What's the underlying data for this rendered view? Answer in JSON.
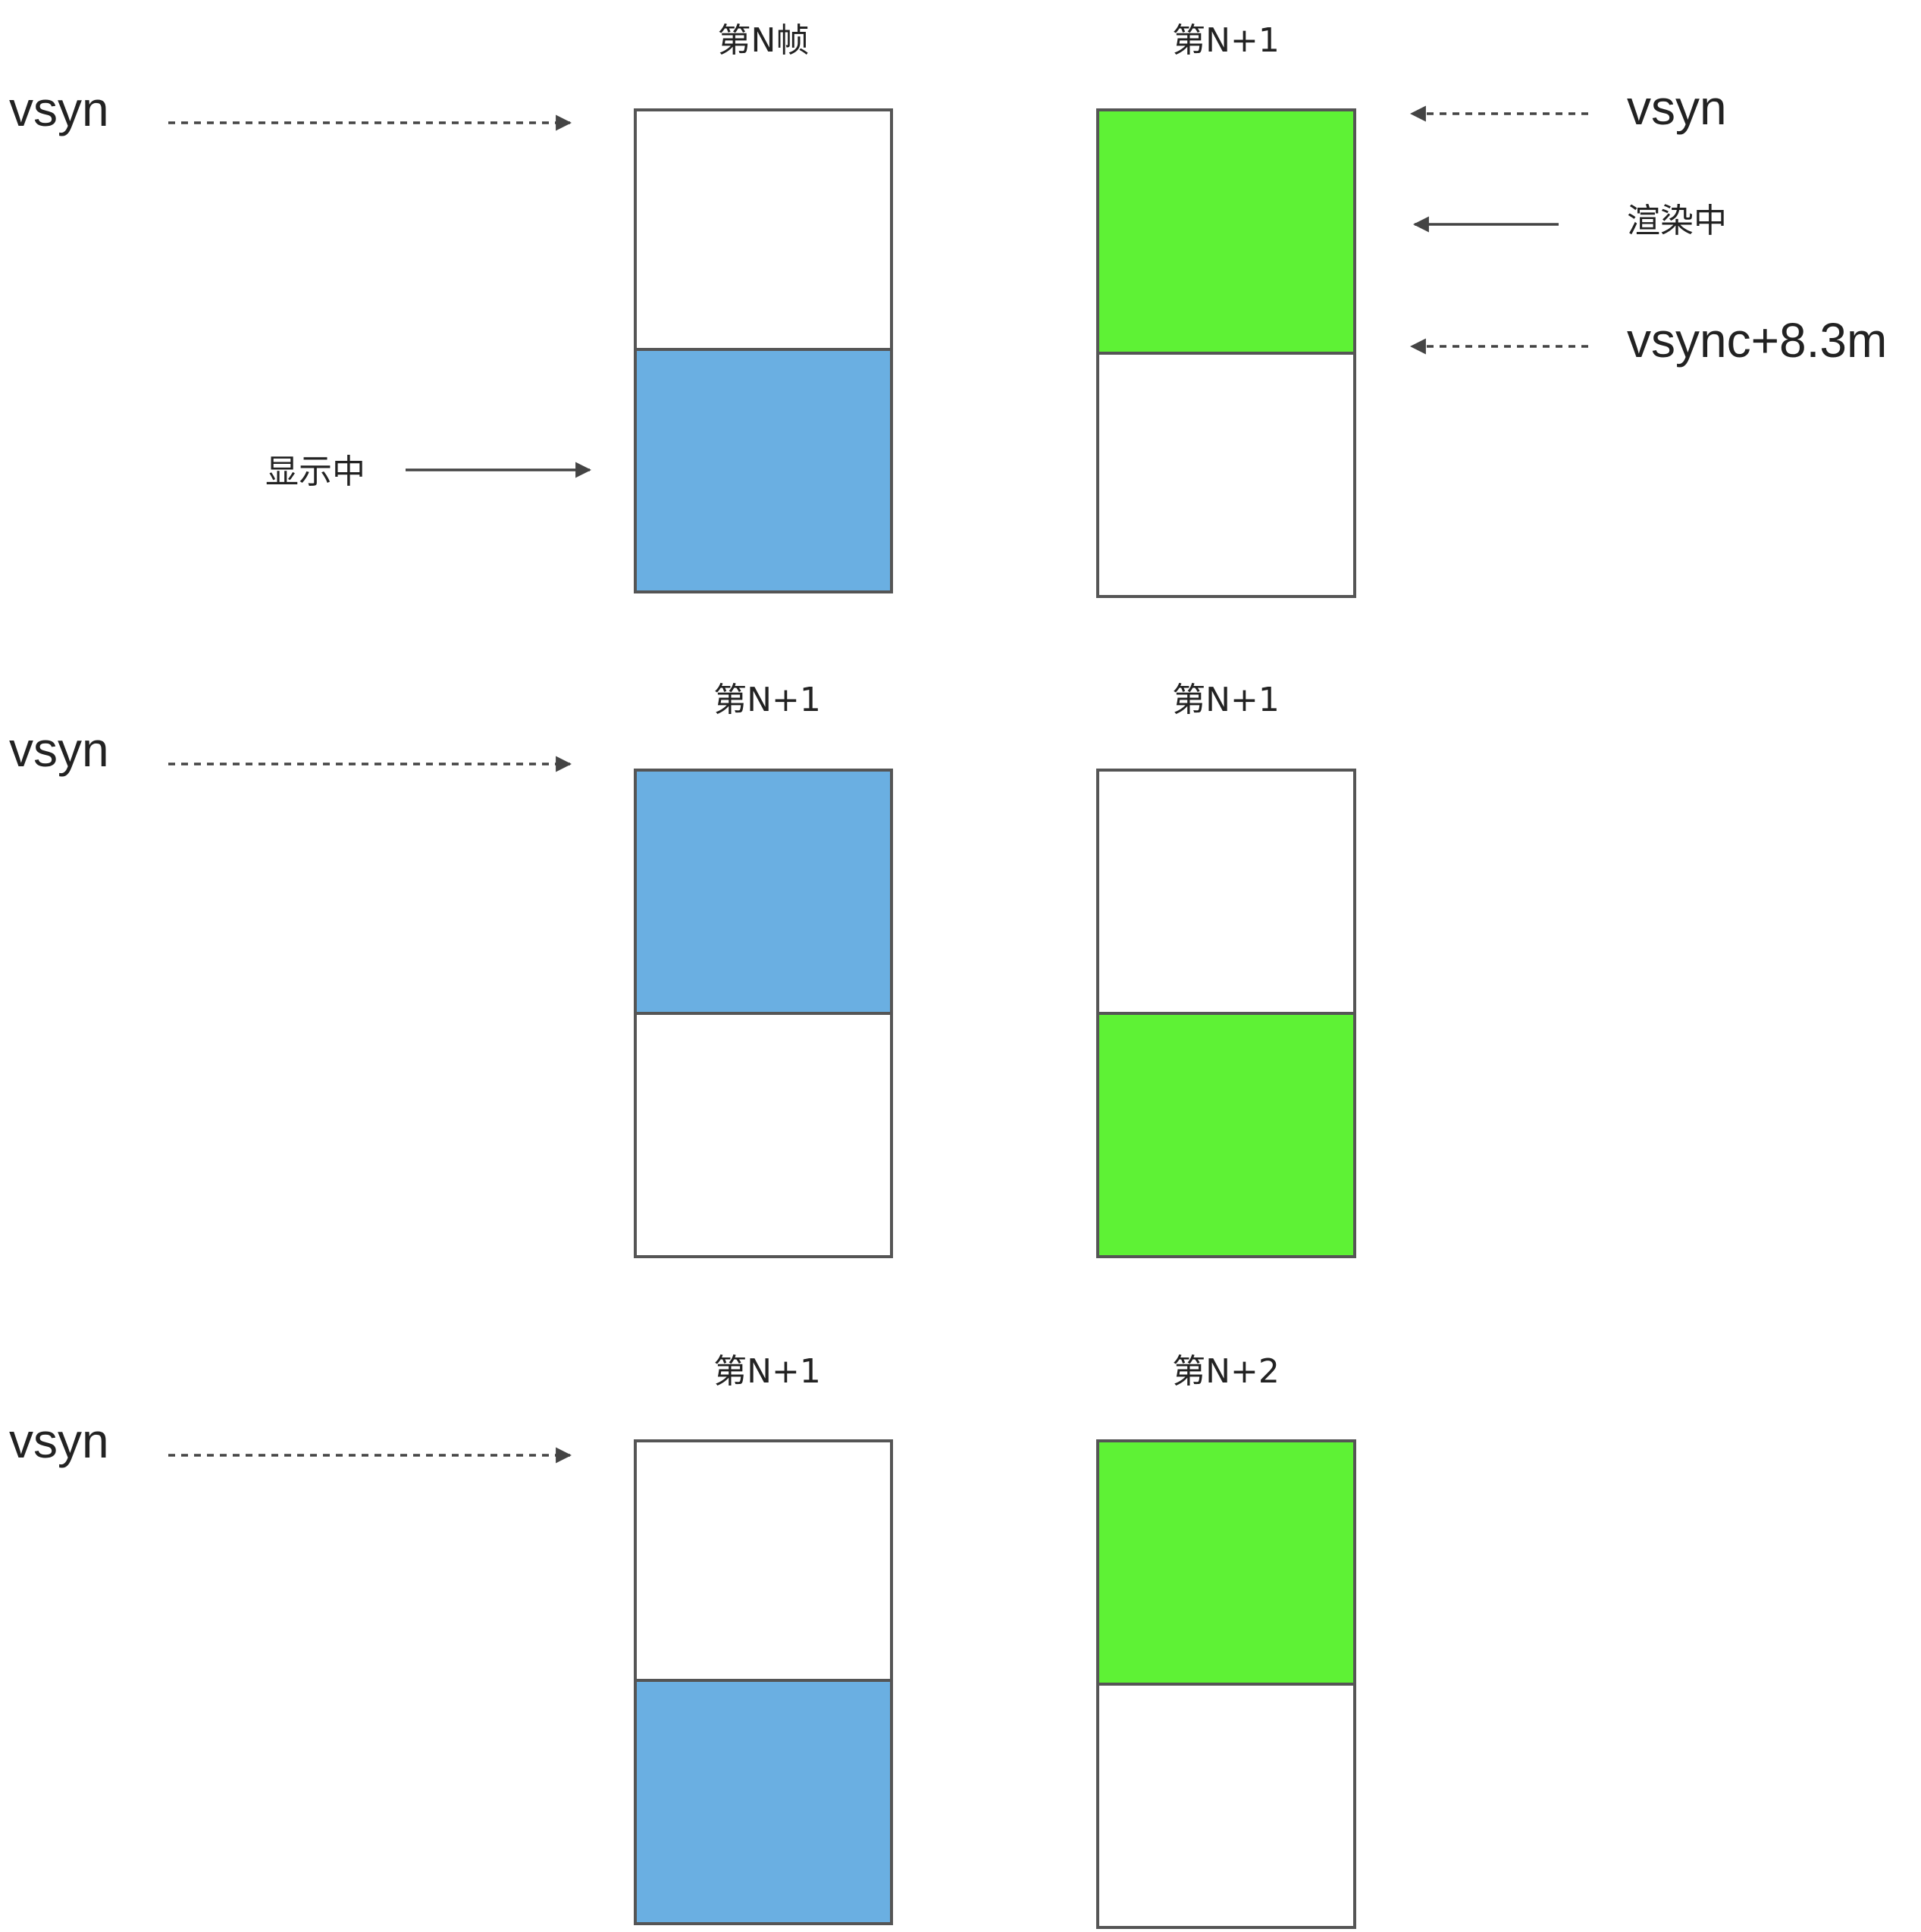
{
  "colors": {
    "display": "#6aafe2",
    "render": "#5ef235",
    "empty": "#ffffff",
    "border": "#555555",
    "text": "#222222"
  },
  "legend": {
    "displaying_label": "显示中",
    "rendering_label": "渲染中",
    "vsync_label": "vsyn",
    "vsync_offset_label": "vsync+8.3m"
  },
  "rows": [
    {
      "vsync_label": "vsyn",
      "buffers": [
        {
          "title": "第N帧",
          "top_fill": "empty",
          "bottom_fill": "display"
        },
        {
          "title": "第N+1",
          "top_fill": "render",
          "bottom_fill": "empty"
        }
      ]
    },
    {
      "vsync_label": "vsyn",
      "buffers": [
        {
          "title": "第N+1",
          "top_fill": "display",
          "bottom_fill": "empty"
        },
        {
          "title": "第N+1",
          "top_fill": "empty",
          "bottom_fill": "render"
        }
      ]
    },
    {
      "vsync_label": "vsyn",
      "buffers": [
        {
          "title": "第N+1",
          "top_fill": "empty",
          "bottom_fill": "display"
        },
        {
          "title": "第N+2",
          "top_fill": "render",
          "bottom_fill": "empty"
        }
      ]
    }
  ]
}
